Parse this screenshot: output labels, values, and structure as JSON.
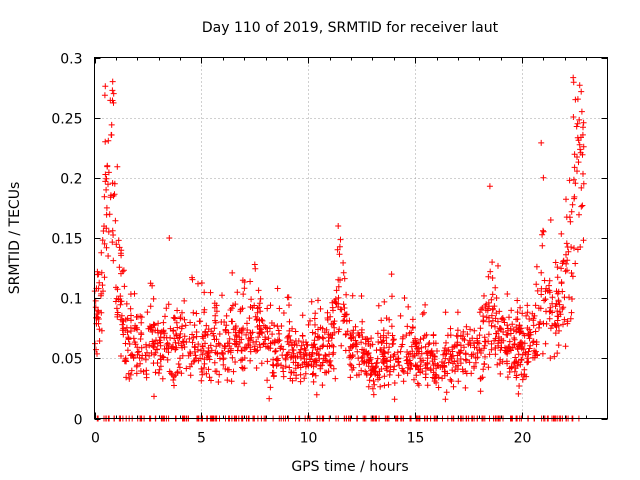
{
  "chart_data": {
    "type": "scatter",
    "title": "Day 110 of 2019, SRMTID for receiver laut",
    "xlabel": "GPS time / hours",
    "ylabel": "SRMTID / TECUs",
    "xlim": [
      0,
      24
    ],
    "ylim": [
      0,
      0.3
    ],
    "xticks": [
      0,
      5,
      10,
      15,
      20
    ],
    "yticks": [
      0,
      0.05,
      0.1,
      0.15,
      0.2,
      0.25,
      0.3
    ],
    "xtick_labels": [
      "0",
      "5",
      "10",
      "15",
      "20"
    ],
    "ytick_labels": [
      "0",
      "0.05",
      "0.1",
      "0.15",
      "0.2",
      "0.25",
      "0.3"
    ],
    "grid": true,
    "marker": "+",
    "series_color": "#ff0000",
    "profile": {
      "hours": [
        0,
        0.3,
        0.5,
        0.7,
        0.85,
        1.0,
        1.3,
        1.6,
        2,
        3,
        4,
        5,
        6,
        7,
        7.5,
        8,
        9,
        10,
        11,
        11.5,
        12,
        13,
        14,
        15,
        16,
        17,
        18,
        18.5,
        19,
        20,
        20.5,
        21,
        21.5,
        22,
        22.3,
        22.6,
        22.9
      ],
      "median_tecu": [
        0.085,
        0.1,
        0.16,
        0.2,
        0.22,
        0.12,
        0.09,
        0.07,
        0.06,
        0.06,
        0.065,
        0.06,
        0.07,
        0.06,
        0.08,
        0.06,
        0.055,
        0.05,
        0.06,
        0.1,
        0.06,
        0.05,
        0.055,
        0.055,
        0.045,
        0.05,
        0.06,
        0.09,
        0.06,
        0.06,
        0.07,
        0.11,
        0.08,
        0.11,
        0.15,
        0.22,
        0.2
      ]
    },
    "highlights": [
      {
        "hour": 0.85,
        "tecu": 0.28
      },
      {
        "hour": 0.9,
        "tecu": 0.27
      },
      {
        "hour": 0.5,
        "tecu": 0.23
      },
      {
        "hour": 0.6,
        "tecu": 0.21
      },
      {
        "hour": 0.95,
        "tecu": 0.195
      },
      {
        "hour": 3.5,
        "tecu": 0.15
      },
      {
        "hour": 11.4,
        "tecu": 0.16
      },
      {
        "hour": 18.5,
        "tecu": 0.193
      },
      {
        "hour": 20.9,
        "tecu": 0.229
      },
      {
        "hour": 21.0,
        "tecu": 0.2
      },
      {
        "hour": 22.7,
        "tecu": 0.277
      },
      {
        "hour": 22.5,
        "tecu": 0.265
      },
      {
        "hour": 22.8,
        "tecu": 0.255
      },
      {
        "hour": 22.6,
        "tecu": 0.245
      },
      {
        "hour": 7.5,
        "tecu": 0.128
      },
      {
        "hour": 13.9,
        "tecu": 0.12
      },
      {
        "hour": 18.6,
        "tecu": 0.13
      }
    ],
    "zero_values_present": true,
    "num_points": 1600
  }
}
